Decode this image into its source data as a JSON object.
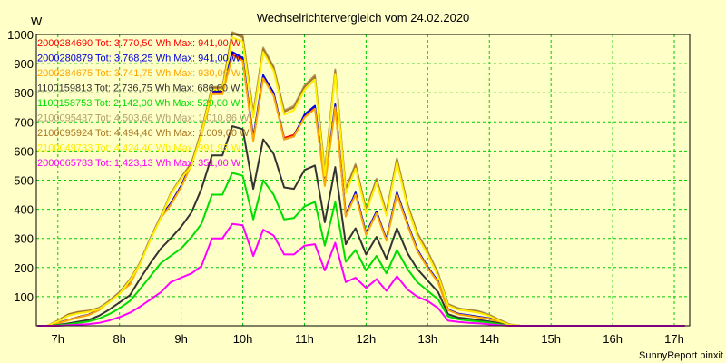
{
  "chart_data": {
    "type": "line",
    "title": "Wechselrichtervergleich vom 24.02.2020",
    "ylabel": "W",
    "xlabel": "",
    "footer": "SunnyReport pinxit",
    "ylim": [
      0,
      1000
    ],
    "xlim": [
      6.65,
      17.25
    ],
    "grid": true,
    "background": "#ffffc8",
    "grid_color": "#00cc00",
    "y_ticks": [
      100,
      200,
      300,
      400,
      500,
      600,
      700,
      800,
      900,
      1000
    ],
    "x_ticks": [
      {
        "value": 7,
        "label": "7h"
      },
      {
        "value": 8,
        "label": "8h"
      },
      {
        "value": 9,
        "label": "9h"
      },
      {
        "value": 10,
        "label": "10h"
      },
      {
        "value": 11,
        "label": "11h"
      },
      {
        "value": 12,
        "label": "12h"
      },
      {
        "value": 13,
        "label": "13h"
      },
      {
        "value": 14,
        "label": "14h"
      },
      {
        "value": 15,
        "label": "15h"
      },
      {
        "value": 16,
        "label": "16h"
      },
      {
        "value": 17,
        "label": "17h"
      }
    ],
    "x": [
      6.67,
      6.83,
      7.0,
      7.17,
      7.33,
      7.5,
      7.67,
      7.83,
      8.0,
      8.17,
      8.33,
      8.5,
      8.67,
      8.83,
      9.0,
      9.17,
      9.33,
      9.5,
      9.67,
      9.83,
      10.0,
      10.17,
      10.33,
      10.5,
      10.67,
      10.83,
      11.0,
      11.17,
      11.33,
      11.5,
      11.67,
      11.83,
      12.0,
      12.17,
      12.33,
      12.5,
      12.67,
      12.83,
      13.0,
      13.17,
      13.33,
      13.5,
      13.67,
      13.83,
      14.0,
      14.17,
      14.33,
      14.5,
      14.67,
      14.83,
      15.0,
      15.17,
      15.33,
      15.5,
      15.67,
      15.83,
      16.0,
      16.17,
      16.33,
      16.5,
      16.67,
      16.83,
      17.0,
      17.17
    ],
    "series": [
      {
        "name": "2000284690",
        "legend": "2000284690 Tot: 3.770,50 Wh Max: 941,00 W",
        "color": "#ff0000",
        "values": [
          0,
          0,
          10,
          20,
          30,
          38,
          55,
          85,
          115,
          145,
          215,
          300,
          375,
          420,
          480,
          560,
          660,
          800,
          800,
          930,
          915,
          640,
          855,
          795,
          645,
          655,
          720,
          750,
          485,
          755,
          380,
          455,
          315,
          390,
          295,
          455,
          350,
          260,
          200,
          150,
          55,
          40,
          35,
          30,
          25,
          12,
          2,
          0,
          0,
          0,
          0,
          0,
          0,
          0,
          0,
          0,
          0,
          0,
          0,
          0,
          0,
          0,
          0,
          0
        ]
      },
      {
        "name": "2000280879",
        "legend": "2000280879 Tot: 3.768,25 Wh Max: 941,00 W",
        "color": "#0000dd",
        "values": [
          0,
          0,
          10,
          20,
          30,
          38,
          55,
          85,
          115,
          145,
          215,
          300,
          375,
          420,
          480,
          560,
          660,
          805,
          805,
          940,
          920,
          645,
          860,
          800,
          640,
          650,
          725,
          755,
          490,
          760,
          380,
          458,
          318,
          392,
          297,
          458,
          352,
          262,
          202,
          152,
          56,
          41,
          36,
          31,
          26,
          13,
          2,
          0,
          0,
          0,
          0,
          0,
          0,
          0,
          0,
          0,
          0,
          0,
          0,
          0,
          0,
          0,
          0,
          0
        ]
      },
      {
        "name": "2000284675",
        "legend": "2000284675 Tot: 3.741,75 Wh Max: 930,00 W",
        "color": "#ffa500",
        "values": [
          0,
          0,
          9,
          19,
          29,
          37,
          54,
          83,
          112,
          142,
          212,
          296,
          370,
          415,
          475,
          555,
          655,
          795,
          795,
          925,
          910,
          635,
          850,
          790,
          640,
          650,
          715,
          745,
          480,
          750,
          375,
          450,
          312,
          386,
          292,
          450,
          346,
          257,
          198,
          148,
          54,
          39,
          34,
          29,
          24,
          11,
          2,
          0,
          0,
          0,
          0,
          0,
          0,
          0,
          0,
          0,
          0,
          0,
          0,
          0,
          0,
          0,
          0,
          0
        ]
      },
      {
        "name": "1100159813",
        "legend": "1100159813 Tot: 2.736,75 Wh Max: 686,00 W",
        "color": "#333333",
        "values": [
          0,
          0,
          3,
          8,
          14,
          20,
          35,
          55,
          80,
          105,
          160,
          215,
          265,
          300,
          340,
          390,
          470,
          585,
          585,
          685,
          675,
          470,
          640,
          590,
          475,
          470,
          535,
          550,
          355,
          545,
          280,
          335,
          245,
          305,
          230,
          335,
          250,
          195,
          155,
          115,
          40,
          28,
          24,
          20,
          15,
          8,
          1,
          0,
          0,
          0,
          0,
          0,
          0,
          0,
          0,
          0,
          0,
          0,
          0,
          0,
          0,
          0,
          0,
          0
        ]
      },
      {
        "name": "1100158753",
        "legend": "1100158753 Tot: 2.142,00 Wh Max: 529,00 W",
        "color": "#00dd00",
        "values": [
          0,
          0,
          2,
          5,
          10,
          15,
          25,
          40,
          60,
          85,
          125,
          170,
          215,
          240,
          265,
          305,
          350,
          450,
          450,
          525,
          515,
          365,
          500,
          450,
          365,
          370,
          410,
          425,
          275,
          425,
          220,
          260,
          190,
          240,
          180,
          260,
          195,
          150,
          120,
          90,
          32,
          22,
          18,
          15,
          11,
          5,
          1,
          0,
          0,
          0,
          0,
          0,
          0,
          0,
          0,
          0,
          0,
          0,
          0,
          0,
          0,
          0,
          0,
          0
        ]
      },
      {
        "name": "2100095437",
        "legend": "2100095437 Tot: 4.503,66 Wh Max: 1.010,86 W",
        "color": "#b0a070",
        "values": [
          0,
          0,
          18,
          40,
          48,
          52,
          62,
          85,
          115,
          160,
          215,
          300,
          375,
          455,
          510,
          560,
          670,
          820,
          820,
          1008,
          995,
          730,
          955,
          890,
          740,
          755,
          825,
          860,
          530,
          880,
          470,
          555,
          400,
          505,
          390,
          575,
          420,
          320,
          255,
          180,
          75,
          60,
          55,
          50,
          38,
          20,
          5,
          0,
          0,
          0,
          0,
          0,
          0,
          0,
          0,
          0,
          0,
          0,
          0,
          0,
          0,
          0,
          0,
          0
        ]
      },
      {
        "name": "2100095924",
        "legend": "2100095924 Tot: 4.494,46 Wh Max: 1.009,00 W",
        "color": "#aa7722",
        "values": [
          0,
          0,
          17,
          39,
          47,
          51,
          60,
          83,
          113,
          157,
          212,
          297,
          372,
          452,
          507,
          557,
          667,
          817,
          817,
          1005,
          990,
          725,
          950,
          885,
          735,
          750,
          820,
          855,
          525,
          875,
          465,
          550,
          395,
          500,
          385,
          570,
          415,
          315,
          250,
          175,
          73,
          58,
          53,
          48,
          36,
          18,
          4,
          0,
          0,
          0,
          0,
          0,
          0,
          0,
          0,
          0,
          0,
          0,
          0,
          0,
          0,
          0,
          0,
          0
        ]
      },
      {
        "name": "2100049733",
        "legend": "2100049733 Tot: 4.424,40 Wh Max: 991,93 W",
        "color": "#ffee00",
        "values": [
          0,
          0,
          15,
          35,
          43,
          48,
          58,
          80,
          110,
          155,
          210,
          295,
          370,
          450,
          505,
          550,
          660,
          810,
          810,
          990,
          975,
          715,
          940,
          875,
          725,
          740,
          810,
          845,
          515,
          865,
          455,
          540,
          388,
          492,
          378,
          560,
          408,
          308,
          245,
          170,
          70,
          55,
          50,
          45,
          34,
          16,
          3,
          0,
          0,
          0,
          0,
          0,
          0,
          0,
          0,
          0,
          0,
          0,
          0,
          0,
          0,
          0,
          0,
          0
        ]
      },
      {
        "name": "2000065783",
        "legend": "2000065783 Tot: 1.423,13 Wh Max: 351,00 W",
        "color": "#ff00ff",
        "values": [
          0,
          0,
          0,
          2,
          4,
          6,
          10,
          18,
          30,
          45,
          65,
          90,
          115,
          150,
          165,
          180,
          205,
          300,
          300,
          350,
          345,
          240,
          330,
          310,
          245,
          245,
          275,
          280,
          190,
          285,
          150,
          165,
          130,
          160,
          120,
          170,
          125,
          100,
          85,
          60,
          18,
          13,
          10,
          8,
          5,
          2,
          0,
          0,
          0,
          0,
          0,
          0,
          0,
          0,
          0,
          0,
          0,
          0,
          0,
          0,
          0,
          0,
          0,
          0
        ]
      }
    ]
  }
}
